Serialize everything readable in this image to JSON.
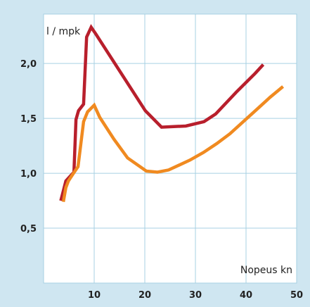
{
  "chart_data": {
    "type": "line",
    "title": "",
    "xlabel": "Nopeus kn",
    "ylabel": "l / mpk",
    "xlim": [
      0,
      50
    ],
    "ylim": [
      0,
      2.45
    ],
    "x_ticks": [
      {
        "value": 10,
        "label": "10"
      },
      {
        "value": 20,
        "label": "20"
      },
      {
        "value": 30,
        "label": "30"
      },
      {
        "value": 40,
        "label": "40"
      },
      {
        "value": 50,
        "label": "50"
      }
    ],
    "y_ticks": [
      {
        "value": 0.5,
        "label": "0,5"
      },
      {
        "value": 1.0,
        "label": "1,0"
      },
      {
        "value": 1.5,
        "label": "1,5"
      },
      {
        "value": 2.0,
        "label": "2,0"
      }
    ],
    "grid": true,
    "series": [
      {
        "color": "#b81f2c",
        "x": [
          3.4,
          3.9,
          4.4,
          5.0,
          6.0,
          6.4,
          6.9,
          7.9,
          8.5,
          9.4,
          10.3,
          20.1,
          23.3,
          28.1,
          31.7,
          34.0,
          38.1,
          41.8,
          43.4
        ],
        "y": [
          0.75,
          0.84,
          0.93,
          0.96,
          1.01,
          1.49,
          1.57,
          1.63,
          2.24,
          2.33,
          2.27,
          1.57,
          1.42,
          1.43,
          1.47,
          1.54,
          1.74,
          1.91,
          1.99
        ]
      },
      {
        "color": "#f08a20",
        "x": [
          3.9,
          4.4,
          4.9,
          5.9,
          6.8,
          7.9,
          8.7,
          10.0,
          11.1,
          13.9,
          16.6,
          20.3,
          22.5,
          24.7,
          28.9,
          31.6,
          34.2,
          36.8,
          42.1,
          44.7,
          47.3
        ],
        "y": [
          0.74,
          0.87,
          0.93,
          1.0,
          1.06,
          1.47,
          1.56,
          1.62,
          1.51,
          1.31,
          1.14,
          1.02,
          1.01,
          1.03,
          1.12,
          1.19,
          1.27,
          1.36,
          1.58,
          1.69,
          1.79
        ]
      }
    ]
  },
  "colors": {
    "background": "#cfe6f1",
    "plot_area": "#ffffff",
    "grid": "#a7d0e3",
    "text": "#222222"
  }
}
